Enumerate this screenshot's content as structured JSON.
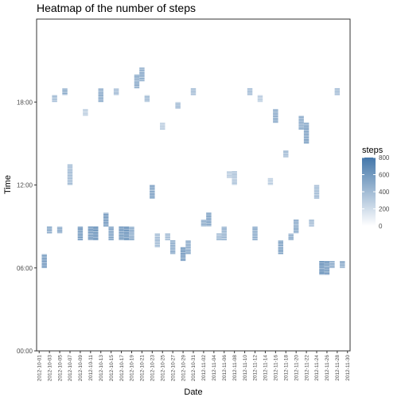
{
  "chart_data": {
    "type": "heatmap",
    "title": "Heatmap of the number of steps",
    "xlabel": "Date",
    "ylabel": "Time",
    "x_start": "2012-10-01",
    "x_end": "2012-11-30",
    "x_tick_step_days": 2,
    "y_ticks": [
      "00:00",
      "06:00",
      "12:00",
      "18:00"
    ],
    "y_range_hours": [
      0,
      24
    ],
    "grid": false,
    "legend": {
      "title": "steps",
      "placement": "right",
      "range": [
        0,
        800
      ],
      "ticks": [
        0,
        200,
        400,
        600,
        800
      ],
      "color_low": "#ffffff",
      "color_high": "#4477aa"
    },
    "missing_days": [
      "2012-10-01",
      "2012-10-08",
      "2012-11-01",
      "2012-11-04",
      "2012-11-09",
      "2012-11-10",
      "2012-11-14",
      "2012-11-30"
    ],
    "cells": [
      {
        "date": "2012-10-02",
        "from": "06:00",
        "to": "07:00",
        "steps": 600
      },
      {
        "date": "2012-10-03",
        "from": "08:30",
        "to": "09:00",
        "steps": 500
      },
      {
        "date": "2012-10-04",
        "from": "18:00",
        "to": "18:30",
        "steps": 400
      },
      {
        "date": "2012-10-05",
        "from": "08:30",
        "to": "09:00",
        "steps": 500
      },
      {
        "date": "2012-10-06",
        "from": "18:30",
        "to": "19:00",
        "steps": 500
      },
      {
        "date": "2012-10-07",
        "from": "12:00",
        "to": "13:30",
        "steps": 400
      },
      {
        "date": "2012-10-09",
        "from": "08:00",
        "to": "09:00",
        "steps": 600
      },
      {
        "date": "2012-10-10",
        "from": "17:00",
        "to": "17:30",
        "steps": 300
      },
      {
        "date": "2012-10-11",
        "from": "08:00",
        "to": "09:00",
        "steps": 600
      },
      {
        "date": "2012-10-12",
        "from": "08:00",
        "to": "09:00",
        "steps": 650
      },
      {
        "date": "2012-10-13",
        "from": "18:00",
        "to": "19:00",
        "steps": 500
      },
      {
        "date": "2012-10-14",
        "from": "09:00",
        "to": "10:00",
        "steps": 600
      },
      {
        "date": "2012-10-15",
        "from": "08:00",
        "to": "09:00",
        "steps": 550
      },
      {
        "date": "2012-10-16",
        "from": "18:30",
        "to": "19:00",
        "steps": 400
      },
      {
        "date": "2012-10-17",
        "from": "08:00",
        "to": "09:00",
        "steps": 600
      },
      {
        "date": "2012-10-18",
        "from": "08:00",
        "to": "09:00",
        "steps": 650
      },
      {
        "date": "2012-10-19",
        "from": "08:00",
        "to": "09:00",
        "steps": 500
      },
      {
        "date": "2012-10-20",
        "from": "19:00",
        "to": "20:00",
        "steps": 500
      },
      {
        "date": "2012-10-21",
        "from": "19:30",
        "to": "20:30",
        "steps": 500
      },
      {
        "date": "2012-10-22",
        "from": "18:00",
        "to": "18:30",
        "steps": 400
      },
      {
        "date": "2012-10-23",
        "from": "11:00",
        "to": "12:00",
        "steps": 550
      },
      {
        "date": "2012-10-24",
        "from": "07:30",
        "to": "08:30",
        "steps": 400
      },
      {
        "date": "2012-10-25",
        "from": "16:00",
        "to": "16:30",
        "steps": 300
      },
      {
        "date": "2012-10-26",
        "from": "08:00",
        "to": "08:30",
        "steps": 400
      },
      {
        "date": "2012-10-27",
        "from": "07:00",
        "to": "08:00",
        "steps": 500
      },
      {
        "date": "2012-10-28",
        "from": "17:30",
        "to": "18:00",
        "steps": 400
      },
      {
        "date": "2012-10-29",
        "from": "06:30",
        "to": "07:30",
        "steps": 600
      },
      {
        "date": "2012-10-30",
        "from": "07:00",
        "to": "08:00",
        "steps": 500
      },
      {
        "date": "2012-10-31",
        "from": "18:30",
        "to": "19:00",
        "steps": 400
      },
      {
        "date": "2012-11-02",
        "from": "09:00",
        "to": "09:30",
        "steps": 500
      },
      {
        "date": "2012-11-03",
        "from": "09:00",
        "to": "10:00",
        "steps": 550
      },
      {
        "date": "2012-11-05",
        "from": "08:00",
        "to": "08:30",
        "steps": 400
      },
      {
        "date": "2012-11-06",
        "from": "08:00",
        "to": "09:00",
        "steps": 450
      },
      {
        "date": "2012-11-07",
        "from": "12:30",
        "to": "13:00",
        "steps": 300
      },
      {
        "date": "2012-11-08",
        "from": "12:00",
        "to": "13:00",
        "steps": 350
      },
      {
        "date": "2012-11-11",
        "from": "18:30",
        "to": "19:00",
        "steps": 400
      },
      {
        "date": "2012-11-12",
        "from": "08:00",
        "to": "09:00",
        "steps": 500
      },
      {
        "date": "2012-11-13",
        "from": "18:00",
        "to": "18:30",
        "steps": 300
      },
      {
        "date": "2012-11-15",
        "from": "12:00",
        "to": "12:30",
        "steps": 300
      },
      {
        "date": "2012-11-16",
        "from": "16:30",
        "to": "17:30",
        "steps": 500
      },
      {
        "date": "2012-11-17",
        "from": "07:00",
        "to": "08:00",
        "steps": 550
      },
      {
        "date": "2012-11-18",
        "from": "14:00",
        "to": "14:30",
        "steps": 400
      },
      {
        "date": "2012-11-19",
        "from": "08:00",
        "to": "08:30",
        "steps": 500
      },
      {
        "date": "2012-11-20",
        "from": "08:30",
        "to": "09:30",
        "steps": 500
      },
      {
        "date": "2012-11-21",
        "from": "16:00",
        "to": "17:00",
        "steps": 500
      },
      {
        "date": "2012-11-22",
        "from": "15:00",
        "to": "16:30",
        "steps": 550
      },
      {
        "date": "2012-11-23",
        "from": "09:00",
        "to": "09:30",
        "steps": 400
      },
      {
        "date": "2012-11-24",
        "from": "11:00",
        "to": "12:00",
        "steps": 400
      },
      {
        "date": "2012-11-25",
        "from": "05:30",
        "to": "06:30",
        "steps": 650
      },
      {
        "date": "2012-11-26",
        "from": "05:30",
        "to": "06:30",
        "steps": 600
      },
      {
        "date": "2012-11-27",
        "from": "06:00",
        "to": "06:30",
        "steps": 500
      },
      {
        "date": "2012-11-28",
        "from": "18:30",
        "to": "19:00",
        "steps": 400
      },
      {
        "date": "2012-11-29",
        "from": "06:00",
        "to": "06:30",
        "steps": 500
      }
    ]
  }
}
